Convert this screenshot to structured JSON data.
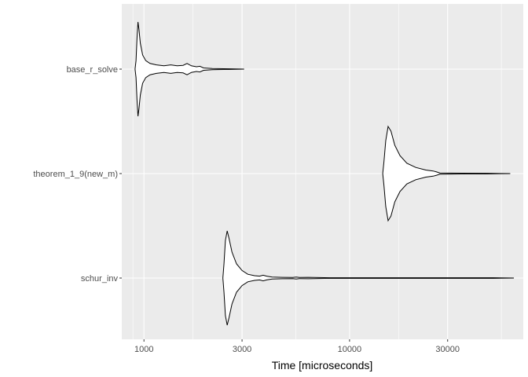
{
  "chart_data": {
    "type": "violin",
    "title": "",
    "xlabel": "Time [microseconds]",
    "ylabel": "",
    "x_scale": "log10",
    "xlim": [
      780,
      70000
    ],
    "x_ticks": [
      1000,
      3000,
      10000,
      30000
    ],
    "x_tick_labels": [
      "1000",
      "3000",
      "10000",
      "30000"
    ],
    "categories": [
      "base_r_solve",
      "theorem_1_9(new_m)",
      "schur_inv"
    ],
    "grid": true,
    "legend": "none",
    "colors": {
      "panel": "#ebebeb",
      "grid_major": "#ffffff",
      "violin_fill": "#ffffff",
      "violin_stroke": "#000000",
      "tick_text": "#4d4d4d"
    },
    "series": [
      {
        "category": "base_r_solve",
        "density": [
          [
            905,
            0
          ],
          [
            915,
            0.18
          ],
          [
            925,
            0.65
          ],
          [
            935,
            1.0
          ],
          [
            945,
            0.85
          ],
          [
            960,
            0.55
          ],
          [
            985,
            0.3
          ],
          [
            1020,
            0.18
          ],
          [
            1070,
            0.12
          ],
          [
            1150,
            0.09
          ],
          [
            1250,
            0.07
          ],
          [
            1350,
            0.09
          ],
          [
            1450,
            0.07
          ],
          [
            1550,
            0.08
          ],
          [
            1620,
            0.12
          ],
          [
            1700,
            0.07
          ],
          [
            1800,
            0.05
          ],
          [
            1870,
            0.06
          ],
          [
            1950,
            0.025
          ],
          [
            2150,
            0.012
          ],
          [
            2600,
            0.006
          ],
          [
            3070,
            0
          ]
        ]
      },
      {
        "category": "theorem_1_9(new_m)",
        "density": [
          [
            14500,
            0
          ],
          [
            14700,
            0.25
          ],
          [
            15000,
            0.7
          ],
          [
            15400,
            1.0
          ],
          [
            15900,
            0.9
          ],
          [
            16600,
            0.6
          ],
          [
            17600,
            0.38
          ],
          [
            19000,
            0.22
          ],
          [
            21000,
            0.13
          ],
          [
            23500,
            0.075
          ],
          [
            25500,
            0.055
          ],
          [
            26500,
            0.035
          ],
          [
            27500,
            0.012
          ],
          [
            35000,
            0.008
          ],
          [
            47000,
            0.006
          ],
          [
            60500,
            0
          ]
        ]
      },
      {
        "category": "schur_inv",
        "density": [
          [
            2420,
            0
          ],
          [
            2450,
            0.3
          ],
          [
            2490,
            0.8
          ],
          [
            2540,
            1.0
          ],
          [
            2590,
            0.85
          ],
          [
            2680,
            0.55
          ],
          [
            2820,
            0.3
          ],
          [
            3000,
            0.16
          ],
          [
            3200,
            0.08
          ],
          [
            3450,
            0.05
          ],
          [
            3650,
            0.04
          ],
          [
            3800,
            0.06
          ],
          [
            3950,
            0.04
          ],
          [
            4200,
            0.02
          ],
          [
            4700,
            0.015
          ],
          [
            5300,
            0.012
          ],
          [
            5500,
            0.02
          ],
          [
            5700,
            0.012
          ],
          [
            6300,
            0.015
          ],
          [
            6700,
            0.012
          ],
          [
            8000,
            0.007
          ],
          [
            20000,
            0.006
          ],
          [
            50000,
            0.006
          ],
          [
            63000,
            0
          ]
        ]
      }
    ]
  }
}
